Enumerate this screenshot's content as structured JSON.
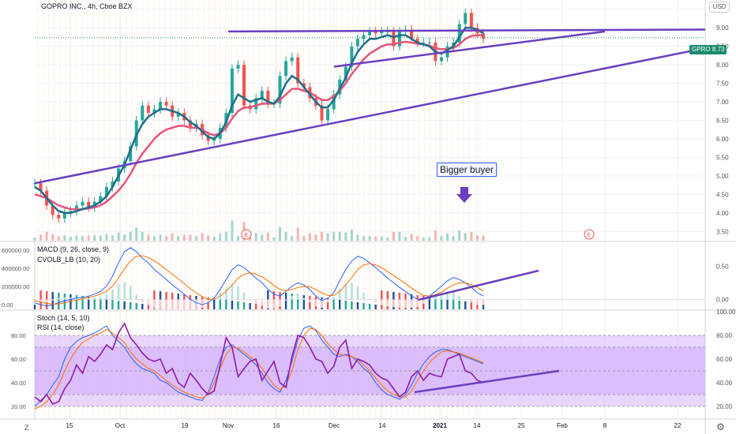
{
  "header": {
    "title": "GOPRO INC., 4h, Cboe BZX",
    "currency": "USD",
    "ticker": "GPRO",
    "last_price": "8.73"
  },
  "annotation": {
    "text": "Bigger buyer"
  },
  "indicators": {
    "macd_label": "MACD (9, 26, close, 9)",
    "cvol_label": "CVOLB_LB (10, 20)",
    "stoch_label": "Stoch (14, 5, 10)",
    "rsi_label": "RSI (14, close)"
  },
  "colors": {
    "purple_line": "#6a3fc0",
    "ema_fast": "#1e6e8c",
    "ema_slow": "#e8537a",
    "up": "#26a69a",
    "down": "#ef5350",
    "rsi_band": "#d6b4fc",
    "rsi_line": "#8e1bab"
  },
  "ui": {
    "z_label": "Z",
    "events": [
      "E",
      "E"
    ]
  },
  "chart_data": [
    {
      "type": "line",
      "name": "price",
      "x_ticks": [
        "15",
        "Oct",
        "19",
        "Nov",
        "16",
        "Dec",
        "14",
        "2021",
        "14",
        "25",
        "Feb",
        "8",
        "22"
      ],
      "y_ticks": [
        "3.50",
        "4.00",
        "4.50",
        "5.00",
        "5.50",
        "6.00",
        "6.50",
        "7.00",
        "7.50",
        "8.00",
        "8.50",
        "9.00",
        "9.50"
      ],
      "ylim": [
        3.25,
        9.75
      ],
      "price_path": [
        4.8,
        4.6,
        4.2,
        3.95,
        3.85,
        4.0,
        4.05,
        4.2,
        4.3,
        4.15,
        4.3,
        4.45,
        4.7,
        4.85,
        5.2,
        5.4,
        5.8,
        6.5,
        6.9,
        6.7,
        6.8,
        7.0,
        6.9,
        6.6,
        6.7,
        6.5,
        6.3,
        6.4,
        6.1,
        5.95,
        6.0,
        6.3,
        6.7,
        7.9,
        8.0,
        6.9,
        6.8,
        7.1,
        7.3,
        6.95,
        6.95,
        7.7,
        8.1,
        8.2,
        7.5,
        7.4,
        7.1,
        6.9,
        6.5,
        6.8,
        7.2,
        7.6,
        7.95,
        8.5,
        8.7,
        8.8,
        8.9,
        8.85,
        8.9,
        8.9,
        8.5,
        8.9,
        8.95,
        8.7,
        8.6,
        8.6,
        8.6,
        8.1,
        8.2,
        8.5,
        8.6,
        9.1,
        9.4,
        9.0,
        8.85,
        8.7
      ],
      "ema_fast": [
        4.7,
        4.6,
        4.4,
        4.2,
        4.05,
        4.0,
        4.0,
        4.05,
        4.1,
        4.15,
        4.2,
        4.3,
        4.45,
        4.7,
        5.0,
        5.3,
        5.7,
        6.1,
        6.4,
        6.6,
        6.7,
        6.8,
        6.8,
        6.75,
        6.7,
        6.6,
        6.45,
        6.35,
        6.2,
        6.05,
        6.0,
        6.15,
        6.45,
        6.9,
        7.2,
        7.1,
        7.0,
        7.05,
        7.1,
        7.0,
        6.95,
        7.15,
        7.5,
        7.7,
        7.6,
        7.4,
        7.2,
        7.0,
        6.85,
        6.85,
        7.05,
        7.35,
        7.65,
        8.05,
        8.35,
        8.55,
        8.7,
        8.7,
        8.75,
        8.8,
        8.75,
        8.8,
        8.8,
        8.7,
        8.6,
        8.55,
        8.5,
        8.35,
        8.3,
        8.4,
        8.5,
        8.75,
        9.0,
        9.0,
        8.95,
        8.85
      ],
      "ema_slow": [
        4.5,
        4.45,
        4.4,
        4.3,
        4.2,
        4.15,
        4.1,
        4.1,
        4.1,
        4.12,
        4.15,
        4.2,
        4.3,
        4.45,
        4.6,
        4.8,
        5.05,
        5.35,
        5.6,
        5.8,
        6.0,
        6.15,
        6.25,
        6.3,
        6.35,
        6.35,
        6.3,
        6.3,
        6.25,
        6.15,
        6.1,
        6.15,
        6.3,
        6.55,
        6.75,
        6.85,
        6.85,
        6.9,
        6.95,
        6.95,
        6.95,
        7.05,
        7.2,
        7.35,
        7.35,
        7.3,
        7.25,
        7.15,
        7.05,
        7.05,
        7.15,
        7.3,
        7.5,
        7.75,
        7.95,
        8.15,
        8.3,
        8.4,
        8.5,
        8.55,
        8.55,
        8.6,
        8.62,
        8.6,
        8.57,
        8.55,
        8.52,
        8.45,
        8.42,
        8.43,
        8.45,
        8.55,
        8.7,
        8.78,
        8.8,
        8.8
      ],
      "trendlines": [
        {
          "from": [
            "start",
            4.8
          ],
          "to": [
            "end",
            8.45
          ]
        },
        {
          "from": [
            "Nov",
            8.9
          ],
          "to": [
            "end",
            8.95
          ]
        },
        {
          "from": [
            "Dec",
            7.95
          ],
          "to": [
            "8",
            8.9
          ]
        }
      ]
    },
    {
      "type": "bar",
      "name": "MACD / CVOLB_LB",
      "y_ticks_left": [
        "0.00",
        "200000.00",
        "400000.00",
        "600000.00"
      ],
      "y_ticks_right": [
        "0.00",
        "0.50"
      ],
      "ylim": [
        -0.15,
        0.85
      ],
      "macd": [
        -0.05,
        -0.08,
        -0.1,
        -0.08,
        -0.05,
        -0.02,
        0.0,
        0.02,
        0.03,
        0.05,
        0.08,
        0.12,
        0.2,
        0.35,
        0.55,
        0.72,
        0.78,
        0.72,
        0.62,
        0.55,
        0.45,
        0.38,
        0.3,
        0.22,
        0.15,
        0.08,
        0.0,
        -0.05,
        -0.08,
        -0.05,
        0.02,
        0.15,
        0.3,
        0.45,
        0.52,
        0.48,
        0.4,
        0.32,
        0.25,
        0.15,
        0.08,
        0.05,
        0.12,
        0.2,
        0.25,
        0.22,
        0.15,
        0.05,
        -0.02,
        0.02,
        0.1,
        0.28,
        0.45,
        0.58,
        0.65,
        0.62,
        0.55,
        0.48,
        0.4,
        0.32,
        0.25,
        0.18,
        0.12,
        0.05,
        0.0,
        0.0,
        0.05,
        0.12,
        0.2,
        0.28,
        0.33,
        0.3,
        0.25,
        0.18,
        0.1,
        0.05
      ],
      "signal": [
        -0.02,
        -0.04,
        -0.06,
        -0.07,
        -0.07,
        -0.05,
        -0.03,
        -0.01,
        0.01,
        0.03,
        0.05,
        0.08,
        0.12,
        0.2,
        0.32,
        0.46,
        0.58,
        0.65,
        0.66,
        0.63,
        0.58,
        0.52,
        0.45,
        0.38,
        0.31,
        0.24,
        0.16,
        0.1,
        0.04,
        0.0,
        0.0,
        0.05,
        0.12,
        0.22,
        0.32,
        0.38,
        0.4,
        0.38,
        0.34,
        0.28,
        0.21,
        0.15,
        0.13,
        0.15,
        0.18,
        0.2,
        0.19,
        0.15,
        0.1,
        0.06,
        0.06,
        0.12,
        0.22,
        0.33,
        0.45,
        0.52,
        0.54,
        0.52,
        0.48,
        0.42,
        0.36,
        0.3,
        0.24,
        0.17,
        0.11,
        0.06,
        0.05,
        0.07,
        0.11,
        0.17,
        0.22,
        0.25,
        0.25,
        0.22,
        0.18,
        0.13
      ]
    },
    {
      "type": "line",
      "name": "Stoch / RSI",
      "y_ticks": [
        "20.00",
        "40.00",
        "60.00",
        "80.00",
        "100.00"
      ],
      "ylim": [
        10,
        100
      ],
      "rsi": [
        28,
        24,
        30,
        22,
        24,
        35,
        42,
        55,
        48,
        62,
        58,
        64,
        72,
        68,
        82,
        90,
        78,
        72,
        65,
        60,
        58,
        60,
        48,
        52,
        40,
        36,
        48,
        42,
        35,
        30,
        33,
        55,
        78,
        70,
        45,
        52,
        58,
        60,
        42,
        50,
        58,
        40,
        36,
        62,
        80,
        78,
        70,
        60,
        58,
        48,
        54,
        70,
        76,
        52,
        60,
        58,
        55,
        48,
        44,
        42,
        35,
        28,
        32,
        45,
        50,
        42,
        48,
        46,
        45,
        60,
        62,
        64,
        50,
        48,
        42,
        40
      ],
      "stoch_k": [
        20,
        25,
        30,
        38,
        45,
        60,
        70,
        75,
        78,
        80,
        82,
        85,
        88,
        80,
        75,
        70,
        62,
        56,
        52,
        50,
        48,
        42,
        40,
        36,
        32,
        30,
        28,
        26,
        25,
        32,
        45,
        60,
        70,
        72,
        68,
        64,
        60,
        55,
        48,
        40,
        35,
        32,
        42,
        58,
        76,
        86,
        88,
        84,
        76,
        70,
        64,
        62,
        64,
        62,
        58,
        52,
        48,
        40,
        34,
        30,
        28,
        26,
        30,
        38,
        48,
        56,
        62,
        66,
        68,
        68,
        66,
        64,
        62,
        60,
        58,
        56
      ],
      "stoch_d": [
        18,
        20,
        24,
        30,
        38,
        50,
        60,
        68,
        74,
        77,
        80,
        82,
        85,
        82,
        78,
        74,
        66,
        60,
        56,
        52,
        50,
        46,
        42,
        38,
        35,
        32,
        30,
        28,
        27,
        30,
        40,
        52,
        64,
        70,
        69,
        66,
        62,
        58,
        52,
        45,
        38,
        34,
        38,
        50,
        68,
        80,
        86,
        85,
        80,
        73,
        68,
        64,
        63,
        62,
        60,
        55,
        50,
        44,
        38,
        33,
        30,
        28,
        28,
        33,
        42,
        50,
        57,
        62,
        66,
        67,
        66,
        65,
        63,
        61,
        59,
        57
      ],
      "levels": [
        80,
        70,
        50,
        30,
        20
      ]
    }
  ]
}
